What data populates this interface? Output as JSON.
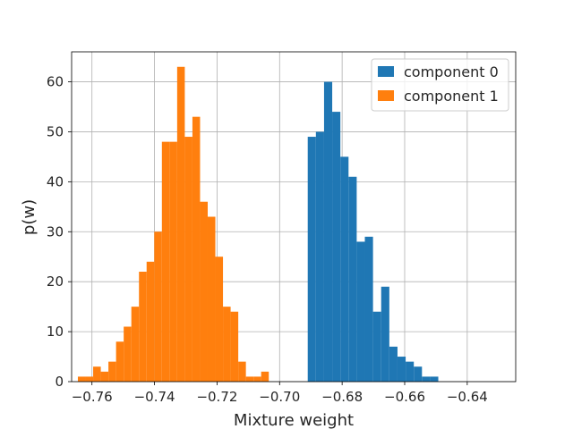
{
  "chart_data": {
    "type": "bar",
    "subtype": "histogram",
    "xlabel": "Mixture weight",
    "ylabel": "p(w)",
    "xlim": [
      -0.7665,
      -0.6245
    ],
    "ylim": [
      0,
      66
    ],
    "xticks": [
      -0.76,
      -0.74,
      -0.72,
      -0.7,
      -0.68,
      -0.66,
      -0.64
    ],
    "xtick_labels": [
      "−0.76",
      "−0.74",
      "−0.72",
      "−0.70",
      "−0.68",
      "−0.66",
      "−0.64"
    ],
    "yticks": [
      0,
      10,
      20,
      30,
      40,
      50,
      60
    ],
    "ytick_labels": [
      "0",
      "10",
      "20",
      "30",
      "40",
      "50",
      "60"
    ],
    "grid": true,
    "legend_position": "top-right",
    "series": [
      {
        "name": "component 0",
        "color": "#1f77b4",
        "bin_start": -0.691,
        "bin_width": 0.002609,
        "values": [
          49,
          50,
          60,
          54,
          45,
          41,
          28,
          29,
          14,
          19,
          7,
          5,
          4,
          3,
          1,
          1
        ]
      },
      {
        "name": "component 1",
        "color": "#ff7f0e",
        "bin_start": -0.7645,
        "bin_width": 0.002442,
        "values": [
          1,
          1,
          3,
          2,
          4,
          8,
          11,
          15,
          22,
          24,
          30,
          48,
          48,
          63,
          49,
          53,
          36,
          33,
          25,
          15,
          14,
          4,
          1,
          1,
          2
        ]
      }
    ]
  }
}
